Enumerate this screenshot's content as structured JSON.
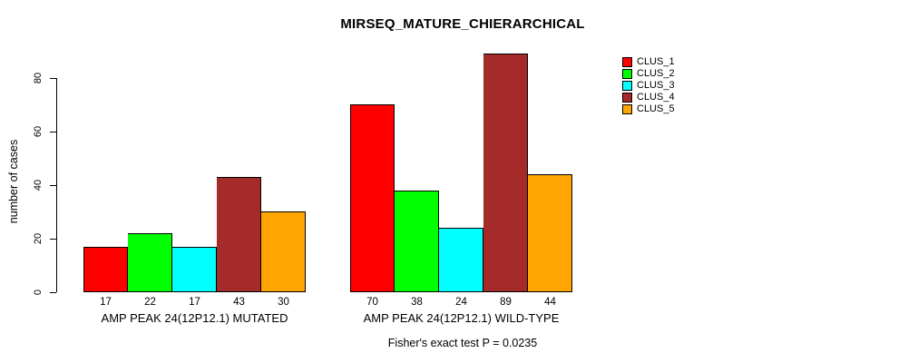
{
  "chart_data": {
    "type": "bar",
    "title": "MIRSEQ_MATURE_CHIERARCHICAL",
    "ylabel": "number of cases",
    "xlabel": "",
    "categories": [
      "AMP PEAK 24(12P12.1) MUTATED",
      "AMP PEAK 24(12P12.1) WILD-TYPE"
    ],
    "series": [
      {
        "name": "CLUS_1",
        "color": "#ff0000",
        "values": [
          17,
          70
        ]
      },
      {
        "name": "CLUS_2",
        "color": "#00ff00",
        "values": [
          22,
          38
        ]
      },
      {
        "name": "CLUS_3",
        "color": "#00ffff",
        "values": [
          17,
          24
        ]
      },
      {
        "name": "CLUS_4",
        "color": "#a52a2a",
        "values": [
          43,
          89
        ]
      },
      {
        "name": "CLUS_5",
        "color": "#ffa500",
        "values": [
          30,
          44
        ]
      }
    ],
    "yticks": [
      0,
      20,
      40,
      60,
      80
    ],
    "ylim": [
      0,
      89
    ],
    "grid": false,
    "legend_position": "top-right",
    "bar_value_labels_shown": true,
    "annotation": "Fisher's exact test P = 0.0235"
  }
}
